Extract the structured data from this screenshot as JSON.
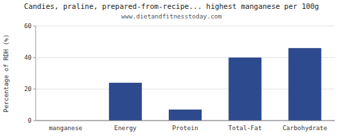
{
  "chart_data": {
    "type": "bar",
    "title": "Candies, praline, prepared-from-recipe... highest manganese per 100g",
    "subtitle": "www.dietandfitnesstoday.com",
    "categories": [
      "manganese",
      "Energy",
      "Protein",
      "Total-Fat",
      "Carbohydrate"
    ],
    "values": [
      0,
      24,
      7,
      40,
      46
    ],
    "color": "#2e4a8e",
    "ylabel": "Percentage of RDH (%)",
    "ylim": [
      0,
      60
    ],
    "yticks": [
      0,
      20,
      40,
      60
    ],
    "grid": true
  }
}
